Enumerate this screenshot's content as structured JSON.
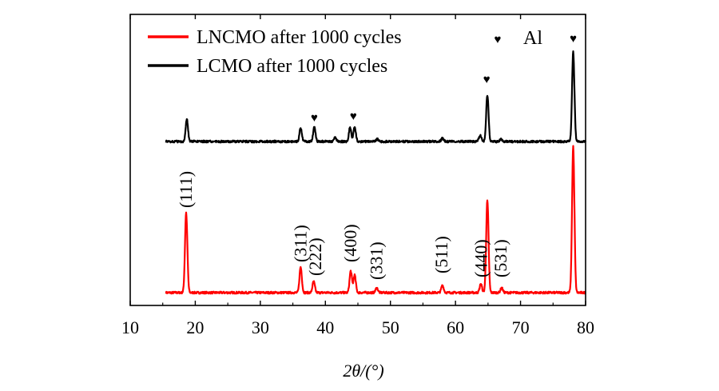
{
  "chart_data": {
    "type": "line",
    "title": "",
    "xlabel": "2θ/(°)",
    "ylabel": "",
    "xlim": [
      10,
      80
    ],
    "x_ticks": [
      10,
      20,
      30,
      40,
      50,
      60,
      70,
      80
    ],
    "x_tick_labels": [
      "10",
      "20",
      "30",
      "40",
      "50",
      "60",
      "70",
      "80"
    ],
    "grid": false,
    "legend_position": "top-left",
    "legend": [
      {
        "label": "LNCMO after 1000 cycles",
        "color": "#ff0000"
      },
      {
        "label": "LCMO after 1000 cycles",
        "color": "#000000"
      }
    ],
    "marker_legend": {
      "symbol": "♥",
      "label": "Al"
    },
    "series": [
      {
        "name": "LNCMO after 1000 cycles",
        "color": "#ff0000",
        "baseline": 0,
        "peaks": [
          {
            "x": 18.6,
            "height": 100
          },
          {
            "x": 36.2,
            "height": 32
          },
          {
            "x": 38.2,
            "height": 14
          },
          {
            "x": 43.9,
            "height": 27
          },
          {
            "x": 44.5,
            "height": 22
          },
          {
            "x": 47.9,
            "height": 6
          },
          {
            "x": 58.0,
            "height": 9
          },
          {
            "x": 63.9,
            "height": 11
          },
          {
            "x": 64.9,
            "height": 115
          },
          {
            "x": 67.1,
            "height": 6
          },
          {
            "x": 78.1,
            "height": 183
          }
        ]
      },
      {
        "name": "LCMO after 1000 cycles",
        "color": "#000000",
        "baseline": 0,
        "peaks": [
          {
            "x": 18.7,
            "height": 28
          },
          {
            "x": 36.2,
            "height": 17
          },
          {
            "x": 38.3,
            "height": 18
          },
          {
            "x": 41.5,
            "height": 5
          },
          {
            "x": 43.8,
            "height": 18
          },
          {
            "x": 44.5,
            "height": 19
          },
          {
            "x": 48.0,
            "height": 3
          },
          {
            "x": 58.0,
            "height": 4
          },
          {
            "x": 63.8,
            "height": 8
          },
          {
            "x": 64.9,
            "height": 58
          },
          {
            "x": 67.0,
            "height": 3
          },
          {
            "x": 78.1,
            "height": 112
          }
        ]
      }
    ],
    "al_markers": [
      {
        "x": 38.3,
        "label": "♥"
      },
      {
        "x": 44.3,
        "label": "♥"
      },
      {
        "x": 64.8,
        "label": "♥"
      },
      {
        "x": 78.1,
        "label": "♥"
      }
    ],
    "annotations": [
      {
        "x": 18.6,
        "label": "(111)"
      },
      {
        "x": 36.2,
        "label": "(311)"
      },
      {
        "x": 38.5,
        "label": "(222)"
      },
      {
        "x": 43.9,
        "label": "(400)"
      },
      {
        "x": 47.9,
        "label": "(331)"
      },
      {
        "x": 57.9,
        "label": "(511)"
      },
      {
        "x": 64.0,
        "label": "(440)"
      },
      {
        "x": 67.0,
        "label": "(531)"
      }
    ]
  }
}
